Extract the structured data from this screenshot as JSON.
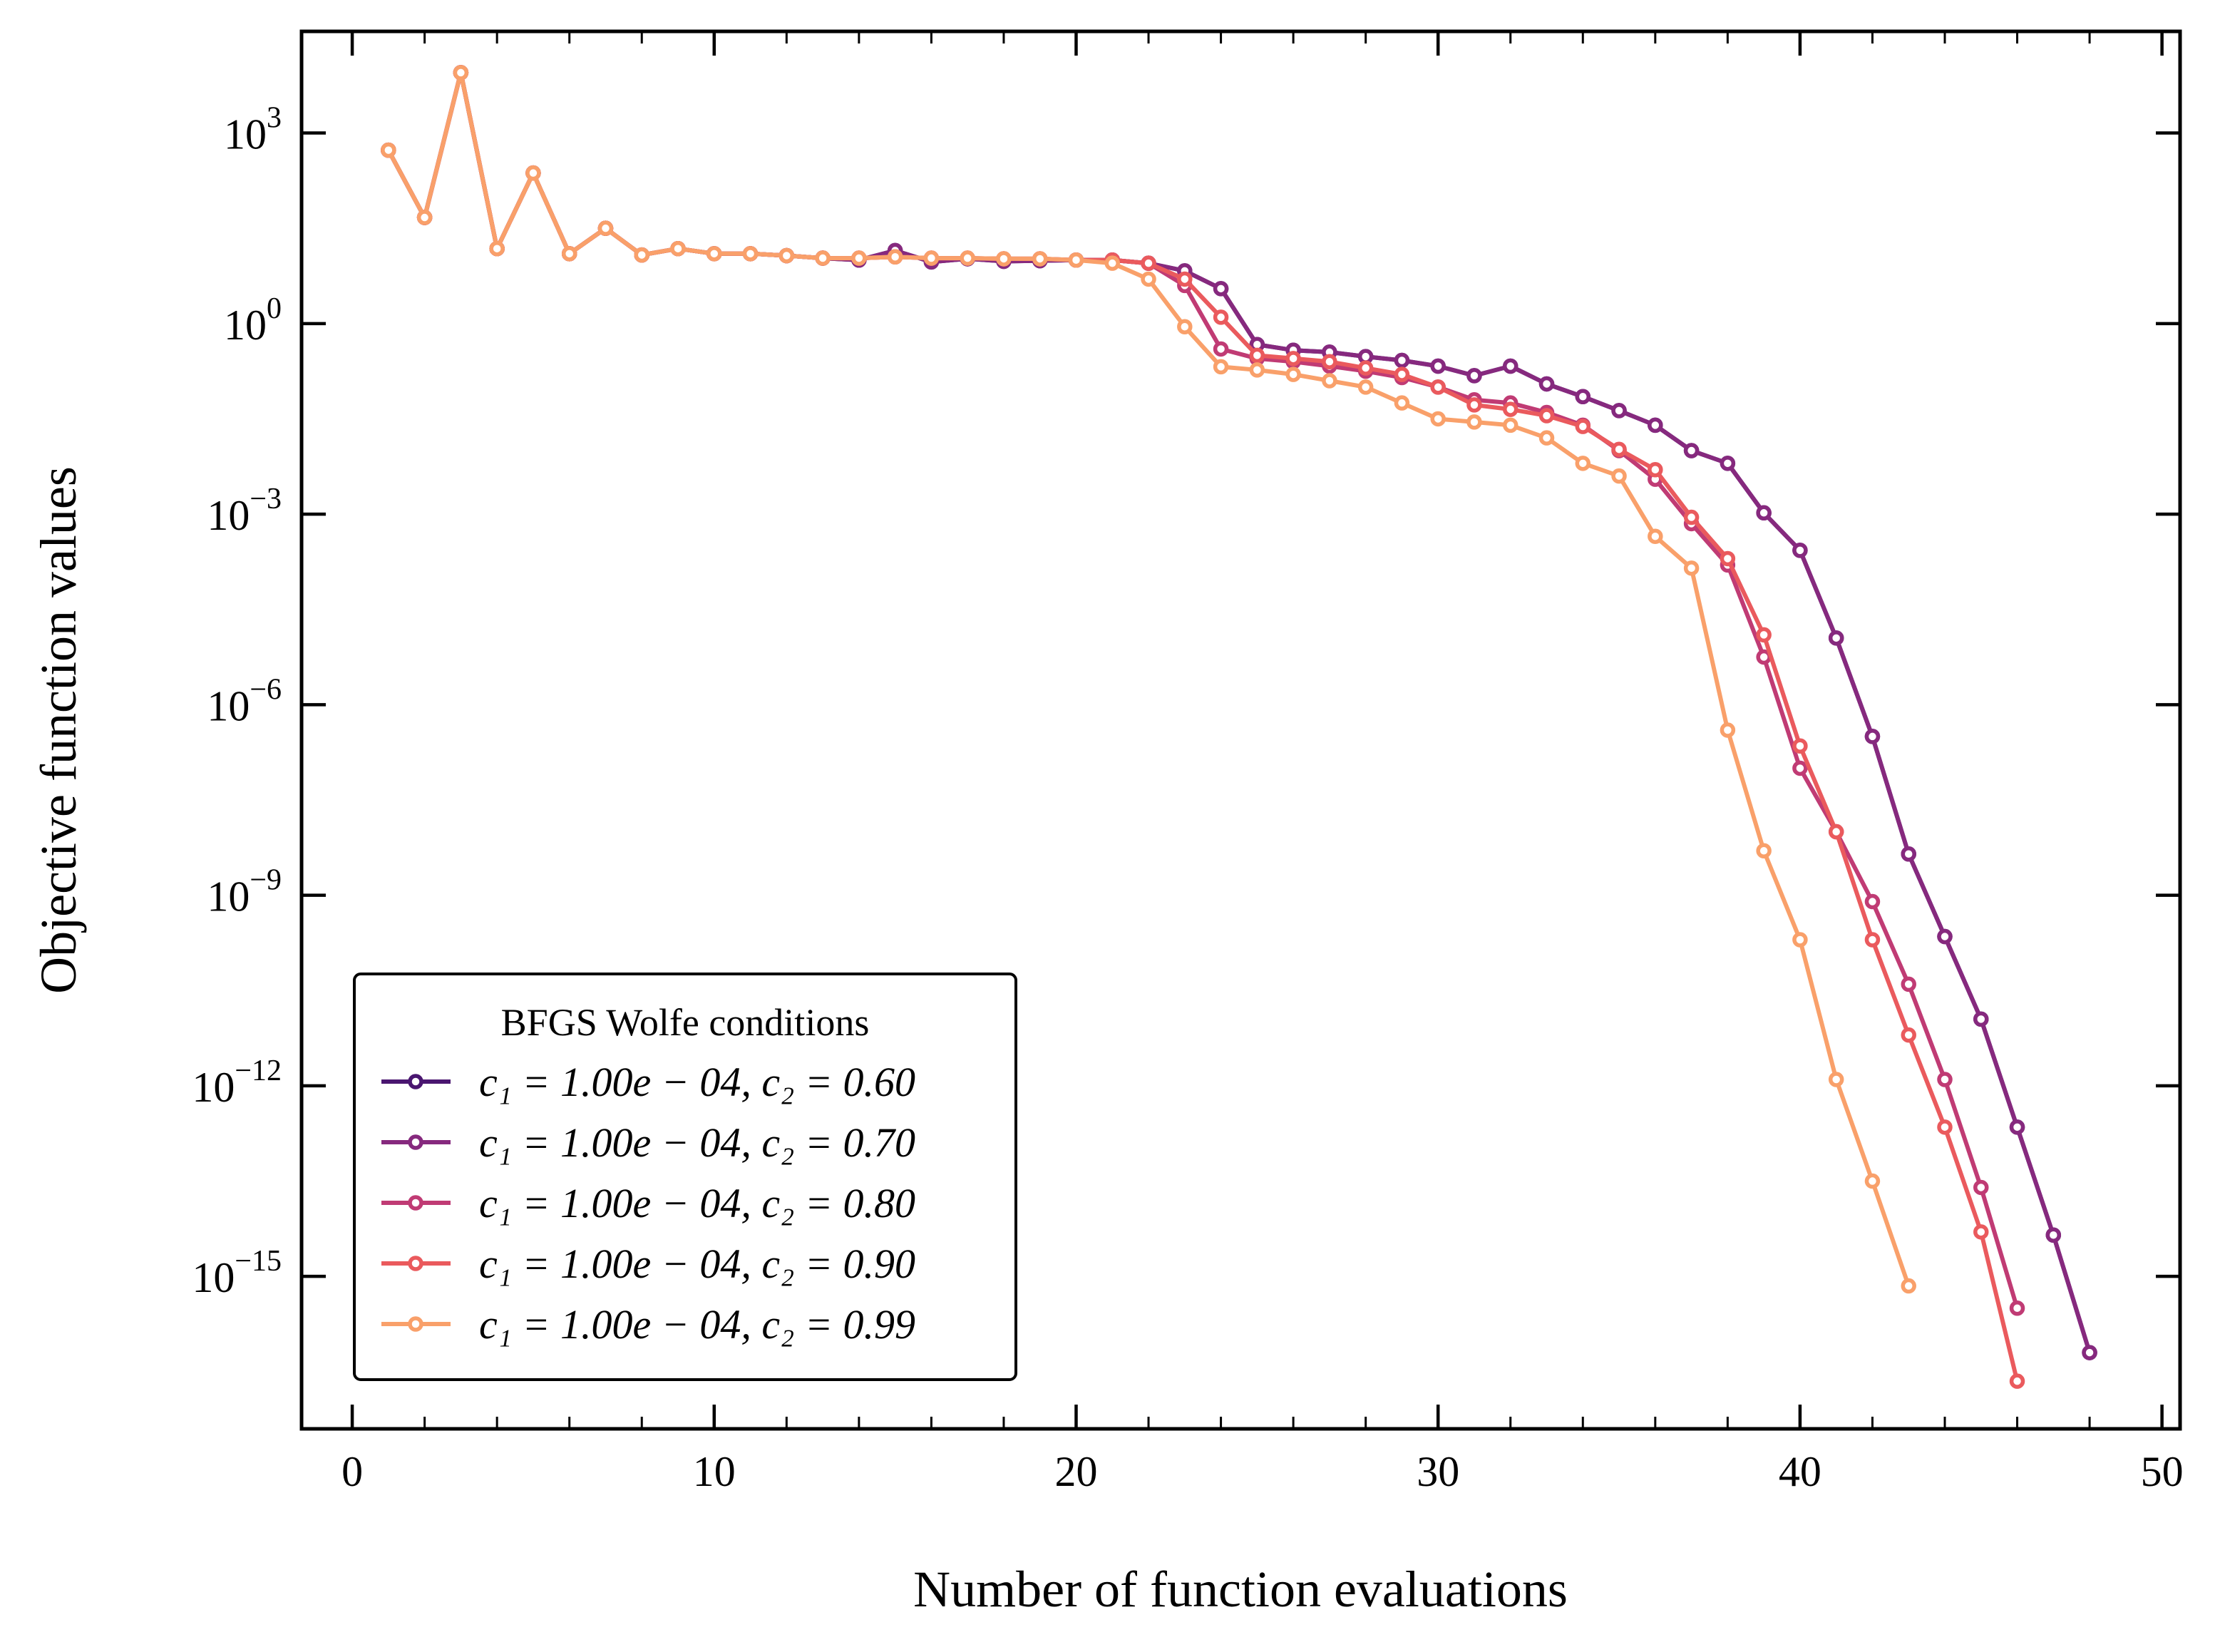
{
  "chart_data": {
    "type": "line",
    "title": "",
    "xlabel": "Number of function evaluations",
    "ylabel": "Objective function values",
    "xlim": [
      -1.4,
      50.5
    ],
    "ylim_log10": [
      -17.4,
      4.6
    ],
    "y_scale": "log",
    "grid": false,
    "legend_position": "lower-left",
    "x_ticks": [
      0,
      10,
      20,
      30,
      40,
      50
    ],
    "x_tick_labels": [
      "0",
      "10",
      "20",
      "30",
      "40",
      "50"
    ],
    "y_ticks_log10": [
      3,
      0,
      -3,
      -6,
      -9,
      -12,
      -15
    ],
    "y_tick_labels": [
      {
        "base": "10",
        "exp": "3"
      },
      {
        "base": "10",
        "exp": "0"
      },
      {
        "base": "10",
        "exp": "−3"
      },
      {
        "base": "10",
        "exp": "−6"
      },
      {
        "base": "10",
        "exp": "−9"
      },
      {
        "base": "10",
        "exp": "−12"
      },
      {
        "base": "10",
        "exp": "−15"
      }
    ],
    "legend_title": "BFGS Wolfe conditions",
    "series": [
      {
        "name": "c₁ = 1.00e − 04, c₂ = 0.60",
        "color": "#4a1670",
        "x": [
          1,
          2,
          3,
          4,
          5,
          6,
          7,
          8,
          9,
          10,
          11,
          12,
          13,
          14,
          15,
          16,
          17,
          18,
          19,
          20,
          21,
          22,
          23,
          24,
          25,
          26,
          27,
          28,
          29,
          30,
          31,
          32,
          33,
          34,
          35,
          36,
          37,
          38,
          39,
          40,
          41,
          42,
          43,
          44,
          45,
          46,
          47,
          48
        ],
        "log10_y": [
          2.73,
          1.67,
          3.95,
          1.18,
          2.37,
          1.1,
          1.5,
          1.08,
          1.18,
          1.1,
          1.1,
          1.07,
          1.03,
          1.0,
          1.15,
          0.97,
          1.02,
          0.98,
          0.99,
          1.0,
          1.0,
          0.95,
          0.83,
          0.55,
          -0.33,
          -0.42,
          -0.45,
          -0.52,
          -0.58,
          -0.67,
          -0.82,
          -0.67,
          -0.95,
          -1.15,
          -1.37,
          -1.6,
          -2.0,
          -2.2,
          -2.98,
          -3.57,
          -4.95,
          -6.5,
          -8.35,
          -9.65,
          -10.95,
          -12.65,
          -14.35,
          -16.2
        ]
      },
      {
        "name": "c₁ = 1.00e − 04, c₂ = 0.70",
        "color": "#86297e",
        "x": [
          1,
          2,
          3,
          4,
          5,
          6,
          7,
          8,
          9,
          10,
          11,
          12,
          13,
          14,
          15,
          16,
          17,
          18,
          19,
          20,
          21,
          22,
          23,
          24,
          25,
          26,
          27,
          28,
          29,
          30,
          31,
          32,
          33,
          34,
          35,
          36,
          37,
          38,
          39,
          40,
          41,
          42,
          43,
          44,
          45,
          46,
          47,
          48
        ],
        "log10_y": [
          2.73,
          1.67,
          3.95,
          1.18,
          2.37,
          1.1,
          1.5,
          1.08,
          1.18,
          1.1,
          1.1,
          1.07,
          1.03,
          1.0,
          1.15,
          0.97,
          1.02,
          0.98,
          0.99,
          1.0,
          1.0,
          0.95,
          0.83,
          0.55,
          -0.33,
          -0.42,
          -0.45,
          -0.52,
          -0.58,
          -0.67,
          -0.82,
          -0.67,
          -0.95,
          -1.15,
          -1.37,
          -1.6,
          -2.0,
          -2.2,
          -2.98,
          -3.57,
          -4.95,
          -6.5,
          -8.35,
          -9.65,
          -10.95,
          -12.65,
          -14.35,
          -16.2
        ]
      },
      {
        "name": "c₁ = 1.00e − 04, c₂ = 0.80",
        "color": "#c03b74",
        "x": [
          1,
          2,
          3,
          4,
          5,
          6,
          7,
          8,
          9,
          10,
          11,
          12,
          13,
          14,
          15,
          16,
          17,
          18,
          19,
          20,
          21,
          22,
          23,
          24,
          25,
          26,
          27,
          28,
          29,
          30,
          31,
          32,
          33,
          34,
          35,
          36,
          37,
          38,
          39,
          40,
          41,
          42,
          43,
          44,
          45,
          46
        ],
        "log10_y": [
          2.73,
          1.67,
          3.95,
          1.18,
          2.37,
          1.1,
          1.5,
          1.08,
          1.18,
          1.1,
          1.1,
          1.07,
          1.03,
          1.03,
          1.05,
          1.03,
          1.03,
          1.02,
          1.02,
          1.0,
          1.0,
          0.95,
          0.6,
          -0.4,
          -0.55,
          -0.6,
          -0.67,
          -0.75,
          -0.85,
          -1.0,
          -1.2,
          -1.25,
          -1.4,
          -1.6,
          -2.0,
          -2.45,
          -3.15,
          -3.8,
          -5.25,
          -7.0,
          -8.0,
          -9.1,
          -10.4,
          -11.9,
          -13.6,
          -15.5
        ]
      },
      {
        "name": "c₁ = 1.00e − 04, c₂ = 0.90",
        "color": "#ea5a5d",
        "x": [
          1,
          2,
          3,
          4,
          5,
          6,
          7,
          8,
          9,
          10,
          11,
          12,
          13,
          14,
          15,
          16,
          17,
          18,
          19,
          20,
          21,
          22,
          23,
          24,
          25,
          26,
          27,
          28,
          29,
          30,
          31,
          32,
          33,
          34,
          35,
          36,
          37,
          38,
          39,
          40,
          41,
          42,
          43,
          44,
          45,
          46
        ],
        "log10_y": [
          2.73,
          1.67,
          3.95,
          1.18,
          2.37,
          1.1,
          1.5,
          1.08,
          1.18,
          1.1,
          1.1,
          1.07,
          1.03,
          1.03,
          1.05,
          1.03,
          1.03,
          1.02,
          1.02,
          1.0,
          1.0,
          0.95,
          0.7,
          0.1,
          -0.5,
          -0.55,
          -0.6,
          -0.7,
          -0.8,
          -1.0,
          -1.28,
          -1.35,
          -1.45,
          -1.62,
          -1.98,
          -2.3,
          -3.05,
          -3.7,
          -4.9,
          -6.65,
          -8.0,
          -9.7,
          -11.2,
          -12.65,
          -14.3,
          -16.65
        ]
      },
      {
        "name": "c₁ = 1.00e − 04, c₂ = 0.99",
        "color": "#f9a06a",
        "x": [
          1,
          2,
          3,
          4,
          5,
          6,
          7,
          8,
          9,
          10,
          11,
          12,
          13,
          14,
          15,
          16,
          17,
          18,
          19,
          20,
          21,
          22,
          23,
          24,
          25,
          26,
          27,
          28,
          29,
          30,
          31,
          32,
          33,
          34,
          35,
          36,
          37,
          38,
          39,
          40,
          41,
          42,
          43
        ],
        "log10_y": [
          2.73,
          1.67,
          3.95,
          1.18,
          2.37,
          1.1,
          1.5,
          1.08,
          1.18,
          1.1,
          1.1,
          1.07,
          1.03,
          1.03,
          1.05,
          1.03,
          1.03,
          1.02,
          1.02,
          1.0,
          0.95,
          0.7,
          -0.05,
          -0.68,
          -0.73,
          -0.8,
          -0.9,
          -1.0,
          -1.25,
          -1.5,
          -1.55,
          -1.6,
          -1.8,
          -2.2,
          -2.4,
          -3.35,
          -3.85,
          -6.4,
          -8.3,
          -9.7,
          -11.9,
          -13.5,
          -15.15
        ]
      }
    ]
  }
}
